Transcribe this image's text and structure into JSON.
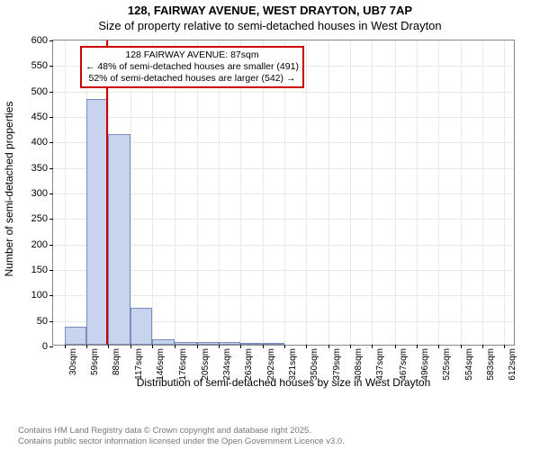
{
  "title": {
    "line1": "128, FAIRWAY AVENUE, WEST DRAYTON, UB7 7AP",
    "line2": "Size of property relative to semi-detached houses in West Drayton"
  },
  "chart": {
    "type": "bar",
    "ylabel": "Number of semi-detached properties",
    "xlabel": "Distribution of semi-detached houses by size in West Drayton",
    "ylim": [
      0,
      600
    ],
    "ytick_step": 50,
    "x_tick_labels": [
      "30sqm",
      "59sqm",
      "88sqm",
      "117sqm",
      "146sqm",
      "176sqm",
      "205sqm",
      "234sqm",
      "263sqm",
      "292sqm",
      "321sqm",
      "350sqm",
      "379sqm",
      "408sqm",
      "437sqm",
      "467sqm",
      "496sqm",
      "525sqm",
      "554sqm",
      "583sqm",
      "612sqm"
    ],
    "bars": [
      {
        "x": 30,
        "x_end": 59,
        "value": 36
      },
      {
        "x": 59,
        "x_end": 88,
        "value": 482
      },
      {
        "x": 88,
        "x_end": 117,
        "value": 413
      },
      {
        "x": 117,
        "x_end": 146,
        "value": 72
      },
      {
        "x": 146,
        "x_end": 176,
        "value": 11
      },
      {
        "x": 176,
        "x_end": 205,
        "value": 6
      },
      {
        "x": 205,
        "x_end": 234,
        "value": 6
      },
      {
        "x": 234,
        "x_end": 263,
        "value": 6
      },
      {
        "x": 263,
        "x_end": 292,
        "value": 4
      },
      {
        "x": 292,
        "x_end": 321,
        "value": 4
      },
      {
        "x": 321,
        "x_end": 350,
        "value": 0
      },
      {
        "x": 350,
        "x_end": 379,
        "value": 0
      },
      {
        "x": 379,
        "x_end": 408,
        "value": 0
      },
      {
        "x": 408,
        "x_end": 437,
        "value": 0
      },
      {
        "x": 437,
        "x_end": 467,
        "value": 0
      },
      {
        "x": 467,
        "x_end": 496,
        "value": 0
      },
      {
        "x": 496,
        "x_end": 525,
        "value": 0
      },
      {
        "x": 525,
        "x_end": 554,
        "value": 0
      },
      {
        "x": 554,
        "x_end": 583,
        "value": 0
      },
      {
        "x": 583,
        "x_end": 612,
        "value": 0
      }
    ],
    "x_range": [
      15,
      627
    ],
    "bar_fill": "#c8d4ee",
    "bar_stroke": "#7a8db8",
    "grid_color": "#e8e8e8",
    "background_color": "#ffffff",
    "axis_fontsize": 11,
    "label_fontsize": 12,
    "highlight": {
      "x_value": 87,
      "line_color": "#cc0000",
      "box": {
        "line1": "128 FAIRWAY AVENUE: 87sqm",
        "line2": "← 48% of semi-detached houses are smaller (491)",
        "line3": "52% of semi-detached houses are larger (542) →"
      }
    }
  },
  "footer": {
    "line1": "Contains HM Land Registry data © Crown copyright and database right 2025.",
    "line2": "Contains public sector information licensed under the Open Government Licence v3.0."
  }
}
